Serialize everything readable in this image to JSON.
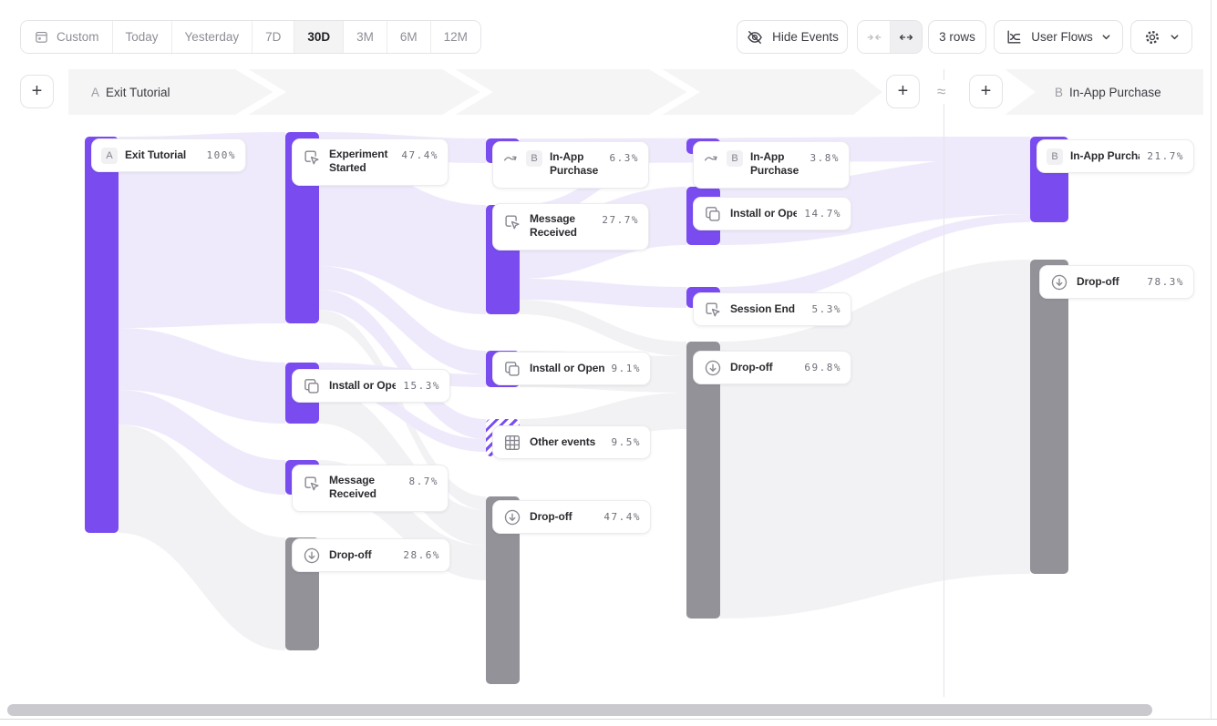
{
  "toolbar": {
    "date_ranges": [
      "Custom",
      "Today",
      "Yesterday",
      "7D",
      "30D",
      "3M",
      "6M",
      "12M"
    ],
    "selected_range": "30D",
    "hide_events_label": "Hide Events",
    "rows_label": "3 rows",
    "view_label": "User Flows"
  },
  "flow_header": {
    "a": {
      "badge": "A",
      "label": "Exit Tutorial"
    },
    "b": {
      "badge": "B",
      "label": "In-App Purchase"
    },
    "approx_symbol": "≈"
  },
  "colors": {
    "node_purple": "#7A4CF0",
    "node_gray": "#929298",
    "link_purple": "#EFEAFB",
    "link_gray": "#F2F2F5",
    "banner_gray": "#F5F5F6"
  },
  "chart_data": {
    "type": "sankey",
    "unit": "percent of users",
    "flows": [
      {
        "id": "A",
        "event": "Exit Tutorial"
      },
      {
        "id": "B",
        "event": "In-App Purchase"
      }
    ],
    "nodes": [
      {
        "col": 1,
        "label": "Exit Tutorial",
        "pct": "100%",
        "value": 100,
        "badge": "A",
        "icon": null,
        "style": "purple",
        "bar": [
          93,
          150,
          37,
          435
        ],
        "card": [
          100,
          152,
          170
        ],
        "lines": 1
      },
      {
        "col": 2,
        "label": "Experiment Started",
        "pct": "47.4%",
        "value": 47.4,
        "badge": null,
        "icon": "cursor-click",
        "style": "purple",
        "bar": [
          313,
          145,
          37,
          210
        ],
        "card": [
          320,
          152,
          172
        ],
        "lines": 2
      },
      {
        "col": 2,
        "label": "Install or Open",
        "pct": "15.3%",
        "value": 15.3,
        "badge": null,
        "icon": "install",
        "style": "purple",
        "bar": [
          313,
          398,
          37,
          67
        ],
        "card": [
          320,
          405,
          174
        ],
        "lines": 1
      },
      {
        "col": 2,
        "label": "Message Received",
        "pct": "8.7%",
        "value": 8.7,
        "badge": null,
        "icon": "cursor-click",
        "style": "purple",
        "bar": [
          313,
          505,
          37,
          38
        ],
        "card": [
          320,
          510,
          172
        ],
        "lines": 2
      },
      {
        "col": 2,
        "label": "Drop-off",
        "pct": "28.6%",
        "value": 28.6,
        "badge": null,
        "icon": "drop-off",
        "style": "gray",
        "bar": [
          313,
          590,
          37,
          124
        ],
        "card": [
          320,
          591,
          174
        ],
        "lines": 1
      },
      {
        "col": 3,
        "label": "In-App Purchase",
        "pct": "6.3%",
        "value": 6.3,
        "badge": "B",
        "icon": "jump",
        "style": "purple",
        "bar": [
          533,
          152,
          37,
          27
        ],
        "card": [
          540,
          155,
          172
        ],
        "lines": 2
      },
      {
        "col": 3,
        "label": "Message Received",
        "pct": "27.7%",
        "value": 27.7,
        "badge": null,
        "icon": "cursor-click",
        "style": "purple",
        "bar": [
          533,
          225,
          37,
          120
        ],
        "card": [
          540,
          223,
          172
        ],
        "lines": 2
      },
      {
        "col": 3,
        "label": "Install or Open",
        "pct": "9.1%",
        "value": 9.1,
        "badge": null,
        "icon": "install",
        "style": "purple",
        "bar": [
          533,
          385,
          37,
          40
        ],
        "card": [
          540,
          386,
          174
        ],
        "lines": 1
      },
      {
        "col": 3,
        "label": "Other events",
        "pct": "9.5%",
        "value": 9.5,
        "badge": null,
        "icon": "grid",
        "style": "striped",
        "bar": [
          533,
          460,
          37,
          41
        ],
        "card": [
          540,
          467,
          174
        ],
        "lines": 1
      },
      {
        "col": 3,
        "label": "Drop-off",
        "pct": "47.4%",
        "value": 47.4,
        "badge": null,
        "icon": "drop-off",
        "style": "gray",
        "bar": [
          533,
          545,
          37,
          206
        ],
        "card": [
          540,
          549,
          174
        ],
        "lines": 1
      },
      {
        "col": 4,
        "label": "In-App Purchase",
        "pct": "3.8%",
        "value": 3.8,
        "badge": "B",
        "icon": "jump",
        "style": "purple",
        "bar": [
          753,
          152,
          37,
          17
        ],
        "card": [
          760,
          155,
          172
        ],
        "lines": 2
      },
      {
        "col": 4,
        "label": "Install or Open",
        "pct": "14.7%",
        "value": 14.7,
        "badge": null,
        "icon": "install",
        "style": "purple",
        "bar": [
          753,
          205,
          37,
          64
        ],
        "card": [
          760,
          216,
          174
        ],
        "lines": 1
      },
      {
        "col": 4,
        "label": "Session End",
        "pct": "5.3%",
        "value": 5.3,
        "badge": null,
        "icon": "cursor-click",
        "style": "purple",
        "bar": [
          753,
          315,
          37,
          23
        ],
        "card": [
          760,
          321,
          174
        ],
        "lines": 1
      },
      {
        "col": 4,
        "label": "Drop-off",
        "pct": "69.8%",
        "value": 69.8,
        "badge": null,
        "icon": "drop-off",
        "style": "gray",
        "bar": [
          753,
          375,
          37,
          304
        ],
        "card": [
          760,
          385,
          174
        ],
        "lines": 1
      },
      {
        "col": 5,
        "label": "In-App Purchase",
        "pct": "21.7%",
        "value": 21.7,
        "badge": "B",
        "icon": null,
        "style": "purple",
        "bar": [
          1130,
          150,
          42,
          94
        ],
        "card": [
          1137,
          153,
          173
        ],
        "lines": 1
      },
      {
        "col": 5,
        "label": "Drop-off",
        "pct": "78.3%",
        "value": 78.3,
        "badge": null,
        "icon": "drop-off",
        "style": "gray",
        "bar": [
          1130,
          285,
          42,
          345
        ],
        "card": [
          1140,
          291,
          170
        ],
        "lines": 1
      }
    ],
    "links": [
      [
        130,
        466,
        585,
        313,
        590,
        714,
        "gray"
      ],
      [
        350,
        340,
        355,
        533,
        545,
        560,
        "gray"
      ],
      [
        350,
        426,
        465,
        533,
        560,
        599,
        "gray"
      ],
      [
        350,
        505,
        543,
        533,
        599,
        637,
        "gray"
      ],
      [
        570,
        329,
        345,
        753,
        375,
        391,
        "gray"
      ],
      [
        570,
        385,
        425,
        753,
        391,
        431,
        "gray"
      ],
      [
        570,
        460,
        500,
        753,
        431,
        471,
        "gray"
      ],
      [
        790,
        375,
        679,
        1130,
        285,
        630,
        "gray"
      ],
      [
        130,
        150,
        360,
        313,
        145,
        355,
        "purple"
      ],
      [
        130,
        360,
        428,
        313,
        398,
        465,
        "purple"
      ],
      [
        130,
        428,
        466,
        313,
        505,
        543,
        "purple"
      ],
      [
        350,
        145,
        172,
        533,
        152,
        179,
        "purple"
      ],
      [
        350,
        172,
        292,
        533,
        225,
        345,
        "purple"
      ],
      [
        350,
        292,
        318,
        533,
        385,
        411,
        "purple"
      ],
      [
        350,
        318,
        340,
        533,
        460,
        482,
        "purple"
      ],
      [
        350,
        398,
        412,
        533,
        411,
        425,
        "purple"
      ],
      [
        350,
        412,
        426,
        533,
        482,
        496,
        "purple"
      ],
      [
        570,
        152,
        179,
        1130,
        150,
        177,
        "purple"
      ],
      [
        570,
        225,
        242,
        753,
        152,
        169,
        "purple"
      ],
      [
        570,
        242,
        306,
        753,
        205,
        269,
        "purple"
      ],
      [
        570,
        306,
        329,
        753,
        315,
        338,
        "purple"
      ],
      [
        790,
        152,
        169,
        1130,
        154,
        171,
        "purple"
      ],
      [
        790,
        205,
        269,
        1130,
        171,
        235,
        "purple"
      ],
      [
        790,
        315,
        338,
        1130,
        235,
        244,
        "purple"
      ]
    ]
  }
}
